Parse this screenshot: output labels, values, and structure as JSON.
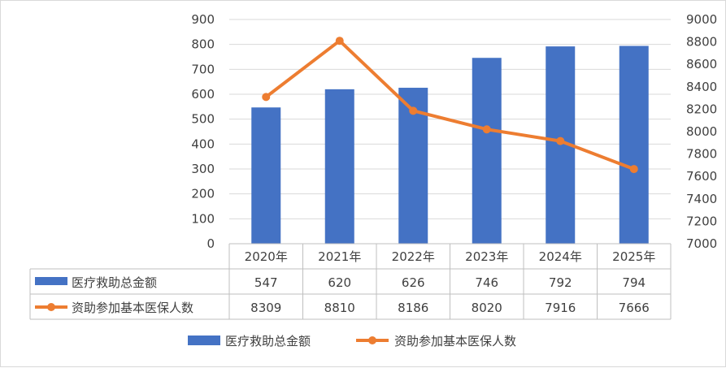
{
  "chart_data": {
    "type": "bar+line",
    "categories": [
      "2020年",
      "2021年",
      "2022年",
      "2023年",
      "2024年",
      "2025年"
    ],
    "series": [
      {
        "name": "医疗救助总金额",
        "type": "bar",
        "axis": "left",
        "color": "#4472c4",
        "values": [
          547,
          620,
          626,
          746,
          792,
          794
        ]
      },
      {
        "name": "资助参加基本医保人数",
        "type": "line",
        "axis": "right",
        "color": "#ed7d31",
        "values": [
          8309,
          8810,
          8186,
          8020,
          7916,
          7666
        ]
      }
    ],
    "y_left": {
      "min": 0,
      "max": 900,
      "step": 100
    },
    "y_right": {
      "min": 7000,
      "max": 9000,
      "step": 200
    },
    "data_table": true,
    "legend": "bottom",
    "grid": true
  }
}
